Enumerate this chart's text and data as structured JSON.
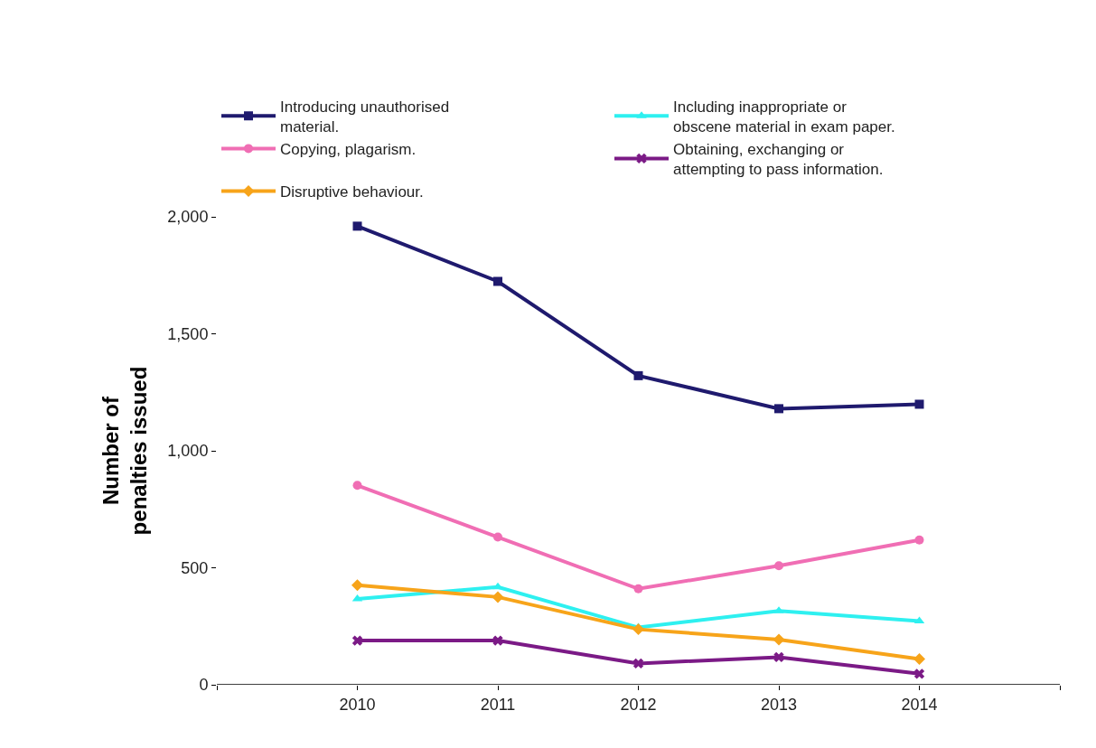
{
  "chart_data": {
    "type": "line",
    "ylabel": "Number of penalties issued",
    "x": [
      2010,
      2011,
      2012,
      2013,
      2014
    ],
    "xlim": [
      2009,
      2015
    ],
    "xticks": [
      {
        "value": 2009,
        "label": null
      },
      2010,
      2011,
      2012,
      2013,
      2014,
      {
        "value": 2015,
        "label": null
      }
    ],
    "ylim": [
      0,
      2000
    ],
    "yticks": [
      {
        "value": 0,
        "label": "0"
      },
      {
        "value": 500,
        "label": "500"
      },
      {
        "value": 1000,
        "label": "1,000"
      },
      {
        "value": 1500,
        "label": "1,500"
      },
      {
        "value": 2000,
        "label": "2,000"
      }
    ],
    "legend": "top",
    "line_style": "solid",
    "series": [
      {
        "name": "Introducing unauthorised material.",
        "color": "#1f1a6e",
        "marker": "square",
        "values": [
          1960,
          1724,
          1321,
          1180,
          1199
        ]
      },
      {
        "name": "Copying, plagarism.",
        "color": "#f06eb4",
        "marker": "circle",
        "values": [
          852,
          631,
          410,
          509,
          619
        ]
      },
      {
        "name": "Disruptive behaviour.",
        "color": "#f7a41a",
        "marker": "diamond",
        "values": [
          426,
          375,
          237,
          193,
          110
        ]
      },
      {
        "name": "Including inappropriate or obscene material in exam paper.",
        "color": "#2ef0f0",
        "marker": "triangle",
        "values": [
          367,
          418,
          245,
          316,
          272
        ]
      },
      {
        "name": "Obtaining, exchanging or attempting to pass information.",
        "color": "#7b1a86",
        "marker": "cross",
        "values": [
          189,
          189,
          91,
          118,
          47
        ]
      }
    ]
  }
}
